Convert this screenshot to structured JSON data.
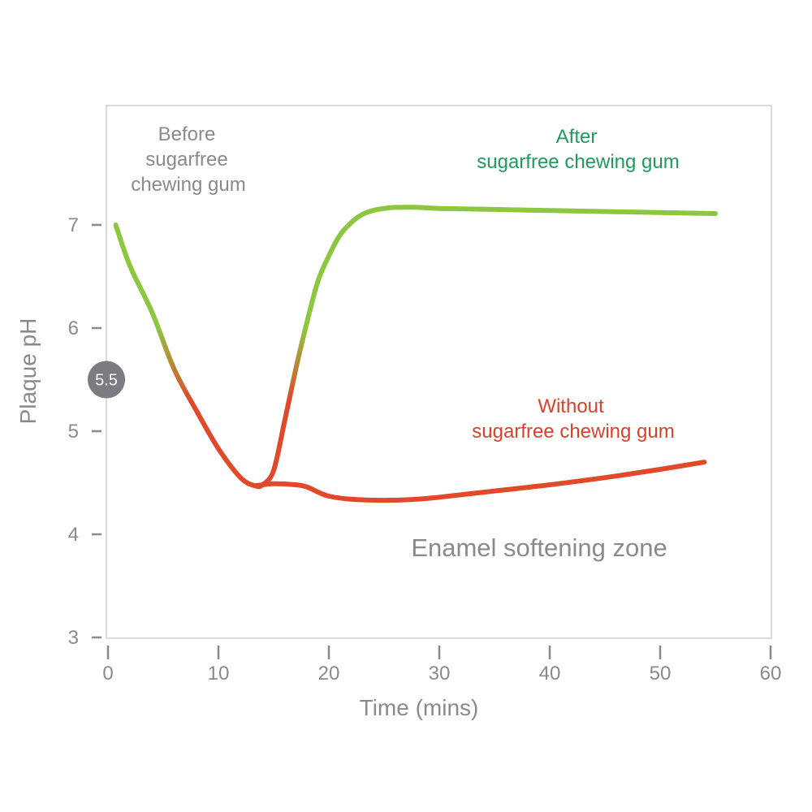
{
  "chart_data": {
    "type": "line",
    "xlabel": "Time (mins)",
    "ylabel": "Plaque pH",
    "xlim": [
      0,
      60
    ],
    "ylim": [
      3,
      7.3
    ],
    "x_ticks": [
      "0",
      "10",
      "20",
      "30",
      "40",
      "50",
      "60"
    ],
    "y_ticks": [
      "3",
      "4",
      "5",
      "6",
      "7"
    ],
    "grid": false,
    "reference_marker": {
      "label": "5.5",
      "y": 5.5
    },
    "annotations": {
      "before": [
        "Before",
        "sugarfree",
        "chewing gum"
      ],
      "after": [
        "After",
        "sugarfree chewing gum"
      ],
      "without": [
        "Without",
        "sugarfree chewing gum"
      ],
      "zone": "Enamel softening zone"
    },
    "series": [
      {
        "name": "After sugarfree chewing gum",
        "color_top": "#8dc63f",
        "color_bottom": "#e04a2b",
        "x": [
          0.7,
          2,
          4,
          6,
          8,
          10,
          12,
          13.3,
          14,
          15,
          16,
          17,
          18,
          19,
          20,
          21,
          22,
          23,
          24,
          25,
          26,
          28,
          30,
          35,
          40,
          45,
          50,
          55
        ],
        "y": [
          7.0,
          6.6,
          6.15,
          5.6,
          5.2,
          4.83,
          4.55,
          4.47,
          4.48,
          4.62,
          5.1,
          5.6,
          6.05,
          6.45,
          6.7,
          6.9,
          7.02,
          7.1,
          7.14,
          7.16,
          7.17,
          7.17,
          7.16,
          7.15,
          7.14,
          7.13,
          7.12,
          7.11
        ]
      },
      {
        "name": "Without sugarfree chewing gum",
        "color": "#e04a2b",
        "x": [
          13.3,
          15,
          17,
          18,
          19,
          20,
          22,
          25,
          28,
          30,
          35,
          40,
          45,
          50,
          54
        ],
        "y": [
          4.47,
          4.49,
          4.48,
          4.46,
          4.41,
          4.37,
          4.34,
          4.33,
          4.34,
          4.36,
          4.42,
          4.48,
          4.55,
          4.63,
          4.7
        ]
      }
    ]
  }
}
